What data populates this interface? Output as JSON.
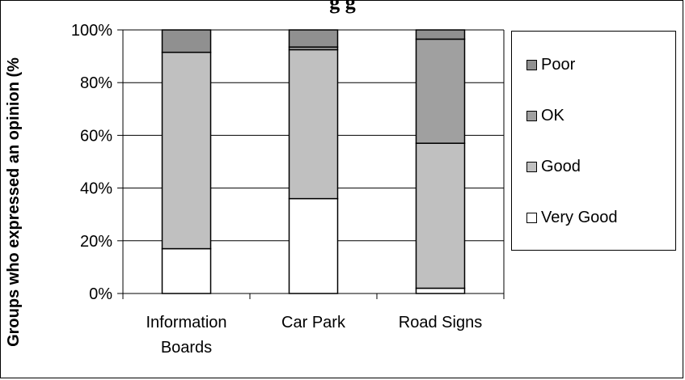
{
  "chart_data": {
    "type": "bar",
    "stacked": true,
    "title": "g        g",
    "ylabel": "Groups who expressed an opinion (%",
    "xlabel": "",
    "ylim": [
      0,
      100
    ],
    "yticks": [
      "0%",
      "20%",
      "40%",
      "60%",
      "80%",
      "100%"
    ],
    "categories": [
      "Information Boards",
      "Car Park",
      "Road Signs"
    ],
    "category_lines": [
      [
        "Information",
        "Boards"
      ],
      [
        "Car Park"
      ],
      [
        "Road Signs"
      ]
    ],
    "series": [
      {
        "name": "Very Good",
        "color": "#ffffff",
        "values": [
          17,
          36,
          2
        ]
      },
      {
        "name": "Good",
        "color": "#c0c0c0",
        "values": [
          74.5,
          56.5,
          55
        ]
      },
      {
        "name": "OK",
        "color": "#a0a0a0",
        "values": [
          0,
          1,
          39.5
        ]
      },
      {
        "name": "Poor",
        "color": "#909090",
        "values": [
          8.5,
          6.5,
          3.5
        ]
      }
    ],
    "legend": {
      "placement": "right",
      "order": [
        "Poor",
        "OK",
        "Good",
        "Very Good"
      ]
    },
    "grid": true
  }
}
